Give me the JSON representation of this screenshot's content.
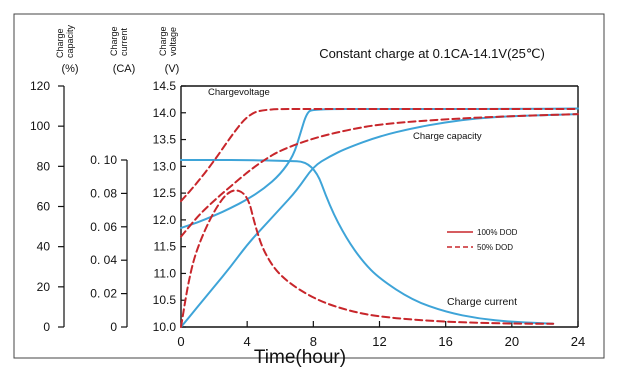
{
  "chart_data": {
    "type": "line",
    "title": "Constant charge at 0.1CA-14.1V(25℃)",
    "xlabel": "Time(hour)",
    "xlim": [
      0,
      24
    ],
    "x_ticks": [
      "0",
      "4",
      "8",
      "12",
      "16",
      "20",
      "24"
    ],
    "axes": {
      "capacity": {
        "label_lines": [
          "Charge",
          "capacity"
        ],
        "unit": "(%)",
        "ylim": [
          0,
          120
        ],
        "ticks": [
          "0",
          "20",
          "40",
          "60",
          "80",
          "100",
          "120"
        ]
      },
      "current": {
        "label_lines": [
          "Charge",
          "current"
        ],
        "unit": "(CA)",
        "ylim": [
          0,
          0.1
        ],
        "ticks": [
          "0",
          "0. 02",
          "0. 04",
          "0. 06",
          "0. 08",
          "0. 10"
        ]
      },
      "voltage": {
        "label_lines": [
          "Charge",
          "voltage"
        ],
        "unit": "(V)",
        "ylim": [
          10.0,
          14.5
        ],
        "ticks": [
          "10.0",
          "10.5",
          "11.0",
          "11.5",
          "12.0",
          "12.5",
          "13.0",
          "13.5",
          "14.0",
          "14.5"
        ]
      }
    },
    "annotations": {
      "charge_voltage": "Chargevoltage",
      "charge_capacity": "Charge capacity",
      "charge_current": "Charge current"
    },
    "legend": {
      "placement": "right",
      "items": [
        {
          "label": "100% DOD",
          "style": "solid",
          "color": "#c8262b"
        },
        {
          "label": "50% DOD",
          "style": "dashed",
          "color": "#c8262b"
        }
      ]
    },
    "series": [
      {
        "group": "100% DOD",
        "quantity": "Charge voltage",
        "axis": "voltage",
        "color": "#3ea4d8",
        "style": "solid",
        "points": [
          [
            0,
            11.85
          ],
          [
            1,
            11.95
          ],
          [
            2,
            12.08
          ],
          [
            3,
            12.22
          ],
          [
            4,
            12.38
          ],
          [
            5,
            12.58
          ],
          [
            6,
            12.85
          ],
          [
            6.8,
            13.2
          ],
          [
            7.2,
            13.6
          ],
          [
            7.6,
            14.0
          ],
          [
            8,
            14.07
          ],
          [
            12,
            14.07
          ],
          [
            16,
            14.07
          ],
          [
            20,
            14.07
          ],
          [
            24,
            14.08
          ]
        ]
      },
      {
        "group": "100% DOD",
        "quantity": "Charge capacity",
        "axis": "capacity",
        "color": "#3ea4d8",
        "style": "solid",
        "points": [
          [
            0,
            0
          ],
          [
            1,
            10
          ],
          [
            2,
            20
          ],
          [
            3,
            30
          ],
          [
            4,
            41
          ],
          [
            5,
            50
          ],
          [
            6,
            59
          ],
          [
            7,
            68
          ],
          [
            8,
            80
          ],
          [
            9,
            85
          ],
          [
            10,
            89
          ],
          [
            12,
            95
          ],
          [
            14,
            99
          ],
          [
            16,
            102
          ],
          [
            18,
            104
          ],
          [
            20,
            105
          ],
          [
            22,
            105.5
          ],
          [
            24,
            106
          ]
        ]
      },
      {
        "group": "100% DOD",
        "quantity": "Charge current",
        "axis": "current",
        "color": "#3ea4d8",
        "style": "solid",
        "points": [
          [
            0,
            0.1
          ],
          [
            2,
            0.1
          ],
          [
            4,
            0.1
          ],
          [
            6,
            0.0995
          ],
          [
            8,
            0.099
          ],
          [
            9,
            0.072
          ],
          [
            10,
            0.053
          ],
          [
            11,
            0.039
          ],
          [
            12,
            0.029
          ],
          [
            14,
            0.016
          ],
          [
            16,
            0.009
          ],
          [
            18,
            0.005
          ],
          [
            20,
            0.003
          ],
          [
            22.5,
            0.002
          ]
        ]
      },
      {
        "group": "50% DOD",
        "quantity": "Charge voltage",
        "axis": "voltage",
        "color": "#c8262b",
        "style": "dashed",
        "points": [
          [
            0,
            12.35
          ],
          [
            1,
            12.7
          ],
          [
            2,
            13.1
          ],
          [
            3,
            13.55
          ],
          [
            4,
            13.95
          ],
          [
            5,
            14.07
          ],
          [
            8,
            14.07
          ],
          [
            12,
            14.07
          ],
          [
            16,
            14.07
          ],
          [
            20,
            14.07
          ],
          [
            24,
            14.07
          ]
        ]
      },
      {
        "group": "50% DOD",
        "quantity": "Charge capacity",
        "axis": "capacity",
        "color": "#c8262b",
        "style": "dashed",
        "points": [
          [
            0,
            45
          ],
          [
            1,
            55
          ],
          [
            2,
            63
          ],
          [
            3,
            70
          ],
          [
            4,
            77
          ],
          [
            5,
            83
          ],
          [
            6,
            88
          ],
          [
            8,
            94
          ],
          [
            10,
            98
          ],
          [
            12,
            101
          ],
          [
            16,
            103.5
          ],
          [
            20,
            105
          ],
          [
            24,
            106
          ]
        ]
      },
      {
        "group": "50% DOD",
        "quantity": "Charge current",
        "axis": "current",
        "color": "#c8262b",
        "style": "dashed",
        "points": [
          [
            0,
            0
          ],
          [
            0.5,
            0.03
          ],
          [
            1,
            0.048
          ],
          [
            2,
            0.07
          ],
          [
            3,
            0.083
          ],
          [
            4,
            0.08
          ],
          [
            4.5,
            0.06
          ],
          [
            5,
            0.045
          ],
          [
            6,
            0.03
          ],
          [
            8,
            0.017
          ],
          [
            10,
            0.01
          ],
          [
            12,
            0.006
          ],
          [
            16,
            0.003
          ],
          [
            20,
            0.002
          ],
          [
            22.5,
            0.002
          ]
        ]
      }
    ]
  }
}
